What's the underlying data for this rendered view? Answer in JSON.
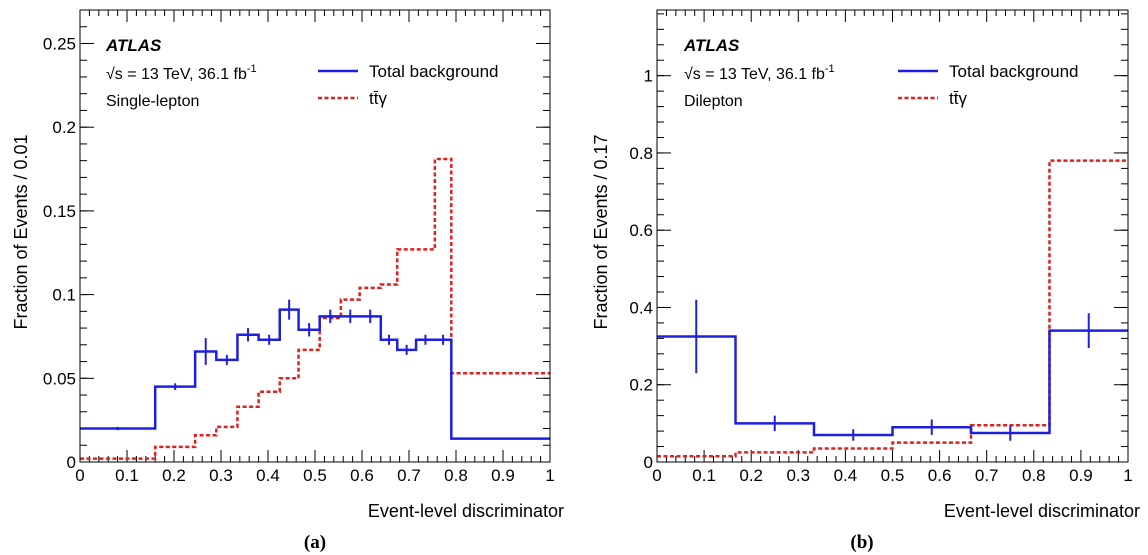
{
  "chart_data": [
    {
      "type": "line",
      "panel_label": "(a)",
      "xlabel": "Event-level discriminator",
      "ylabel": "Fraction of Events / 0.01",
      "xlim": [
        0,
        1
      ],
      "ylim": [
        0,
        0.27
      ],
      "x_ticks": [
        0,
        0.1,
        0.2,
        0.3,
        0.4,
        0.5,
        0.6,
        0.7,
        0.8,
        0.9,
        1
      ],
      "x_tick_labels": [
        "0",
        "0.1",
        "0.2",
        "0.3",
        "0.4",
        "0.5",
        "0.6",
        "0.7",
        "0.8",
        "0.9",
        "1"
      ],
      "y_ticks": [
        0,
        0.05,
        0.1,
        0.15,
        0.2,
        0.25
      ],
      "y_tick_labels": [
        "0",
        "0.05",
        "0.1",
        "0.15",
        "0.2",
        "0.25"
      ],
      "annotations": {
        "experiment": "ATLAS",
        "energy": "√s = 13 TeV, 36.1  fb",
        "energy_sup": "-1",
        "channel": "Single-lepton"
      },
      "legend": {
        "placement": "top-right",
        "entries": [
          "Total background",
          "tt̄γ"
        ]
      },
      "series": [
        {
          "name": "Total background",
          "color": "#1f1fe0",
          "style": "solid",
          "edges": [
            0,
            0.16,
            0.245,
            0.29,
            0.335,
            0.38,
            0.425,
            0.465,
            0.51,
            0.555,
            0.595,
            0.64,
            0.675,
            0.715,
            0.755,
            0.79,
            0.815,
            1.0
          ],
          "values": [
            0.02,
            0.045,
            0.066,
            0.061,
            0.076,
            0.073,
            0.091,
            0.079,
            0.087,
            0.087,
            0.087,
            0.073,
            0.067,
            0.073,
            0.073,
            0.014,
            0.014
          ],
          "errors": [
            0.001,
            0.002,
            0.008,
            0.003,
            0.004,
            0.003,
            0.006,
            0.004,
            0.004,
            0.004,
            0.004,
            0.003,
            0.003,
            0.003,
            0.003,
            0.0005,
            0.0005
          ]
        },
        {
          "name": "tt̄γ",
          "color": "#e01f1f",
          "style": "dashed",
          "edges": [
            0,
            0.16,
            0.245,
            0.29,
            0.335,
            0.38,
            0.425,
            0.465,
            0.51,
            0.555,
            0.595,
            0.64,
            0.675,
            0.715,
            0.755,
            0.79,
            0.815,
            1.0
          ],
          "values": [
            0.002,
            0.009,
            0.016,
            0.021,
            0.033,
            0.042,
            0.05,
            0.067,
            0.086,
            0.097,
            0.104,
            0.106,
            0.127,
            0.127,
            0.181,
            0.053,
            0.053
          ]
        }
      ]
    },
    {
      "type": "line",
      "panel_label": "(b)",
      "xlabel": "Event-level discriminator",
      "ylabel": "Fraction of Events / 0.17",
      "xlim": [
        0,
        1
      ],
      "ylim": [
        0,
        1.17
      ],
      "x_ticks": [
        0,
        0.1,
        0.2,
        0.3,
        0.4,
        0.5,
        0.6,
        0.7,
        0.8,
        0.9,
        1
      ],
      "x_tick_labels": [
        "0",
        "0.1",
        "0.2",
        "0.3",
        "0.4",
        "0.5",
        "0.6",
        "0.7",
        "0.8",
        "0.9",
        "1"
      ],
      "y_ticks": [
        0,
        0.2,
        0.4,
        0.6,
        0.8,
        1.0
      ],
      "y_tick_labels": [
        "0",
        "0.2",
        "0.4",
        "0.6",
        "0.8",
        "1"
      ],
      "annotations": {
        "experiment": "ATLAS",
        "energy": "√s = 13 TeV, 36.1  fb",
        "energy_sup": "-1",
        "channel": "Dilepton"
      },
      "legend": {
        "placement": "top-right",
        "entries": [
          "Total background",
          "tt̄γ"
        ]
      },
      "series": [
        {
          "name": "Total background",
          "color": "#1f1fe0",
          "style": "solid",
          "edges": [
            0,
            0.1667,
            0.3333,
            0.5,
            0.6667,
            0.8333,
            1.0
          ],
          "values": [
            0.325,
            0.1,
            0.07,
            0.09,
            0.075,
            0.34
          ],
          "errors": [
            0.095,
            0.02,
            0.015,
            0.02,
            0.02,
            0.045
          ]
        },
        {
          "name": "tt̄γ",
          "color": "#e01f1f",
          "style": "dashed",
          "edges": [
            0,
            0.1667,
            0.3333,
            0.5,
            0.6667,
            0.8333,
            1.0
          ],
          "values": [
            0.015,
            0.025,
            0.035,
            0.05,
            0.095,
            0.78
          ]
        }
      ]
    }
  ]
}
